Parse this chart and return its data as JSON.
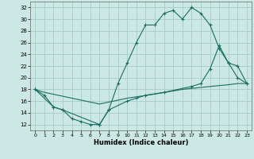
{
  "xlabel": "Humidex (Indice chaleur)",
  "xlim": [
    -0.5,
    23.5
  ],
  "ylim": [
    11,
    33
  ],
  "yticks": [
    12,
    14,
    16,
    18,
    20,
    22,
    24,
    26,
    28,
    30,
    32
  ],
  "xticks": [
    0,
    1,
    2,
    3,
    4,
    5,
    6,
    7,
    8,
    9,
    10,
    11,
    12,
    13,
    14,
    15,
    16,
    17,
    18,
    19,
    20,
    21,
    22,
    23
  ],
  "bg_color": "#cce8e4",
  "line_color": "#1a6e62",
  "grid_color": "#aacfca",
  "line1_x": [
    0,
    1,
    2,
    3,
    4,
    5,
    6,
    7,
    8,
    9,
    10,
    11,
    12,
    13,
    14,
    15,
    16,
    17,
    18,
    19,
    20,
    21,
    22,
    23
  ],
  "line1_y": [
    18.0,
    17.0,
    15.0,
    14.5,
    13.0,
    12.5,
    12.0,
    12.0,
    14.5,
    19.0,
    22.5,
    26.0,
    29.0,
    29.0,
    31.0,
    31.5,
    30.0,
    32.0,
    31.0,
    29.0,
    25.0,
    22.5,
    20.0,
    19.0
  ],
  "line2_x": [
    0,
    1,
    7,
    10,
    13,
    16,
    19,
    21,
    22,
    23
  ],
  "line2_y": [
    18.0,
    17.5,
    15.5,
    16.5,
    17.2,
    18.0,
    18.5,
    18.8,
    19.0,
    19.0
  ],
  "line3_x": [
    0,
    2,
    3,
    7,
    8,
    10,
    11,
    12,
    14,
    17,
    18,
    19,
    20,
    21,
    22,
    23
  ],
  "line3_y": [
    18.0,
    15.0,
    14.5,
    12.0,
    14.5,
    16.0,
    16.5,
    17.0,
    17.5,
    18.5,
    19.0,
    21.5,
    25.5,
    22.5,
    22.0,
    19.0
  ]
}
